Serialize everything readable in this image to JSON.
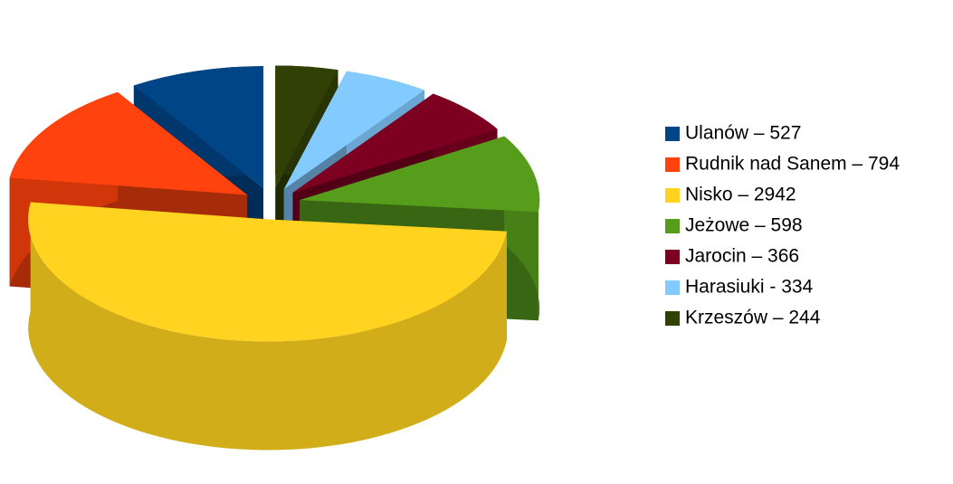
{
  "chart_data": {
    "type": "pie",
    "categories": [
      "Ulanów – 527",
      "Rudnik nad Sanem – 794",
      "Nisko – 2942",
      "Jeżowe – 598",
      "Jarocin – 366",
      "Harasiuki -  334",
      "Krzeszów – 244"
    ],
    "values": [
      527,
      794,
      2942,
      598,
      366,
      334,
      244
    ],
    "colors": [
      "#004586",
      "#ff420e",
      "#ffd320",
      "#579d1c",
      "#7e0021",
      "#83caff",
      "#314004"
    ],
    "legend": "right"
  }
}
